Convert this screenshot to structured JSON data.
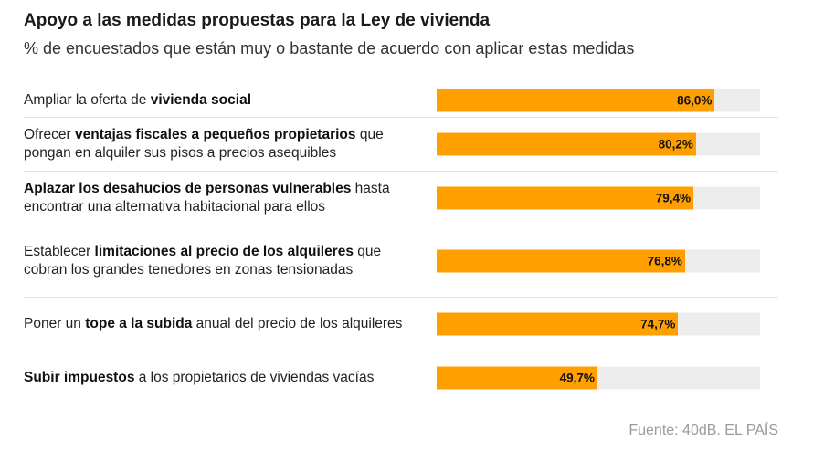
{
  "title": "Apoyo a las medidas propuestas para la Ley de vivienda",
  "subtitle": "% de encuestados que están muy o bastante de acuerdo con aplicar estas medidas",
  "source": "Fuente: 40dB. EL PAÍS",
  "chart_data": {
    "type": "bar",
    "orientation": "horizontal",
    "title": "Apoyo a las medidas propuestas para la Ley de vivienda",
    "subtitle": "% de encuestados que están muy o bastante de acuerdo con aplicar estas medidas",
    "xlim": [
      0,
      100
    ],
    "grid": false,
    "bar_color": "#ff9f00",
    "track_color": "#ececec",
    "categories": [
      "Ampliar la oferta de vivienda social",
      "Ofrecer ventajas fiscales a pequeños propietarios que pongan en alquiler sus pisos a precios asequibles",
      "Aplazar los desahucios de personas vulnerables hasta encontrar una alternativa habitacional para ellos",
      "Establecer limitaciones al precio de los alquileres que cobran los grandes tenedores en zonas tensionadas",
      "Poner un tope a la subida anual del precio de los alquileres",
      "Subir impuestos a los propietarios de viviendas vacías"
    ],
    "values": [
      86.0,
      80.2,
      79.4,
      76.8,
      74.7,
      49.7
    ],
    "value_labels": [
      "86,0%",
      "80,2%",
      "79,4%",
      "76,8%",
      "74,7%",
      "49,7%"
    ],
    "label_parts": [
      [
        {
          "t": "Ampliar la oferta de ",
          "b": false
        },
        {
          "t": "vivienda social",
          "b": true
        }
      ],
      [
        {
          "t": "Ofrecer ",
          "b": false
        },
        {
          "t": "ventajas fiscales a pequeños propietarios",
          "b": true
        },
        {
          "t": " que pongan en alquiler sus pisos a precios asequibles",
          "b": false
        }
      ],
      [
        {
          "t": "Aplazar los desahucios de personas vulnerables",
          "b": true
        },
        {
          "t": " hasta encontrar una alternativa habitacional para ellos",
          "b": false
        }
      ],
      [
        {
          "t": "Establecer ",
          "b": false
        },
        {
          "t": "limitaciones al precio de los alquileres",
          "b": true
        },
        {
          "t": " que cobran los grandes tenedores en zonas tensionadas",
          "b": false
        }
      ],
      [
        {
          "t": "Poner un ",
          "b": false
        },
        {
          "t": "tope a la subida",
          "b": true
        },
        {
          "t": " anual del precio de los alquileres",
          "b": false
        }
      ],
      [
        {
          "t": "Subir impuestos",
          "b": true
        },
        {
          "t": " a los propietarios de viviendas vacías",
          "b": false
        }
      ]
    ]
  }
}
